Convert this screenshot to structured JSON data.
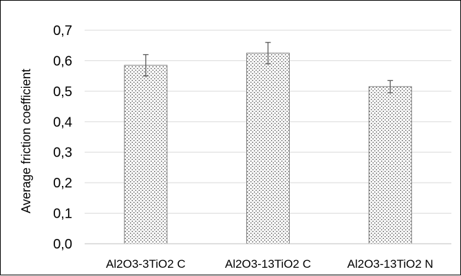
{
  "chart_data": {
    "type": "bar",
    "title": "",
    "xlabel": "",
    "ylabel": "Average friction coefficient",
    "categories": [
      "Al2O3-3TiO2 C",
      "Al2O3-13TiO2 C",
      "Al2O3-13TiO2 N"
    ],
    "values": [
      0.585,
      0.625,
      0.515
    ],
    "error_bars": [
      0.035,
      0.035,
      0.02
    ],
    "ylim": [
      0.0,
      0.7
    ],
    "yticks": [
      0.0,
      0.1,
      0.2,
      0.3,
      0.4,
      0.5,
      0.6,
      0.7
    ],
    "ytick_labels": [
      "0,0",
      "0,1",
      "0,2",
      "0,3",
      "0,4",
      "0,5",
      "0,6",
      "0,7"
    ],
    "grid": true,
    "legend": "none",
    "bar_fill": "dotted pattern",
    "colors": {
      "bar_stroke": "#7f7f7f",
      "bar_dots": "#555555",
      "grid": "#d9d9d9",
      "axis": "#bfbfbf",
      "error_bar": "#595959",
      "text": "#000000"
    }
  }
}
